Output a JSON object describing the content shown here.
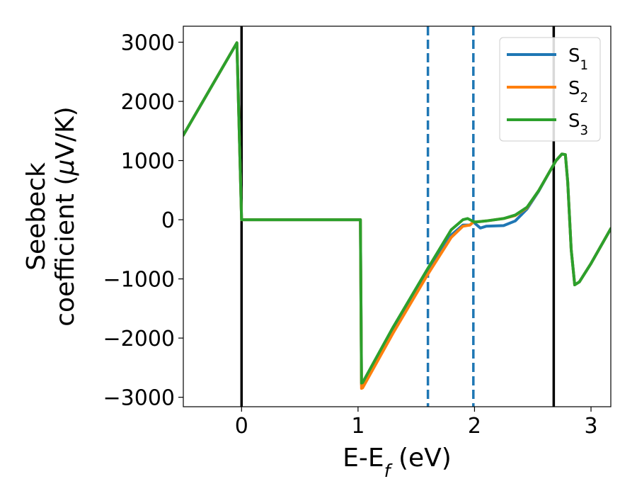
{
  "chart_data": {
    "type": "line",
    "xlabel": "E-E$_f$ (eV)",
    "ylabel_lines": [
      "Seebeck",
      "coefficient  ($\\mu$V/K)"
    ],
    "xlim": [
      -0.5,
      3.17
    ],
    "ylim": [
      -3160,
      3270
    ],
    "xticks": [
      0,
      1,
      2,
      3
    ],
    "yticks": [
      -3000,
      -2000,
      -1000,
      0,
      1000,
      2000,
      3000
    ],
    "xtick_labels": [
      "0",
      "1",
      "2",
      "3"
    ],
    "ytick_labels": [
      "−3000",
      "−2000",
      "−1000",
      "0",
      "1000",
      "2000",
      "3000"
    ],
    "grid": false,
    "legend_position": "top-right",
    "colors": {
      "S1": "#1f77b4",
      "S2": "#ff7f0e",
      "S3": "#2ca02c",
      "vline_solid": "#000000",
      "vline_dashed": "#1f77b4"
    },
    "vlines": [
      {
        "x": 0.0,
        "style": "solid",
        "color": "#000000"
      },
      {
        "x": 2.68,
        "style": "solid",
        "color": "#000000"
      },
      {
        "x": 1.6,
        "style": "dashed",
        "color": "#1f77b4"
      },
      {
        "x": 1.99,
        "style": "dashed",
        "color": "#1f77b4"
      }
    ],
    "series": [
      {
        "name": "S$_1$",
        "color": "#1f77b4",
        "x": [
          -0.5,
          -0.04,
          -0.02,
          0.0,
          0.5,
          1.02,
          1.03,
          1.04,
          1.3,
          1.6,
          1.8,
          1.9,
          1.96,
          1.99,
          2.05,
          2.1,
          2.25,
          2.35,
          2.45,
          2.55,
          2.65,
          2.7,
          2.75,
          2.78,
          2.8,
          2.83,
          2.86,
          2.9,
          3.0,
          3.17
        ],
        "y": [
          1430,
          2990,
          1500,
          0,
          0,
          0,
          -2790,
          -2780,
          -1870,
          -870,
          -260,
          -90,
          -90,
          -40,
          -140,
          -110,
          -100,
          -20,
          180,
          480,
          830,
          1000,
          1110,
          1100,
          640,
          -500,
          -1100,
          -1050,
          -740,
          -150
        ]
      },
      {
        "name": "S$_2$",
        "color": "#ff7f0e",
        "x": [
          -0.5,
          -0.04,
          -0.02,
          0.0,
          0.5,
          1.02,
          1.03,
          1.04,
          1.3,
          1.6,
          1.8,
          1.9,
          1.96,
          1.99,
          2.05,
          2.1,
          2.25,
          2.35,
          2.45,
          2.55,
          2.65,
          2.7,
          2.75,
          2.78,
          2.8,
          2.83,
          2.86,
          2.9,
          3.0,
          3.17
        ],
        "y": [
          1430,
          2990,
          1500,
          0,
          0,
          0,
          -2850,
          -2840,
          -1920,
          -920,
          -300,
          -110,
          -90,
          -40,
          -30,
          -20,
          20,
          70,
          200,
          490,
          830,
          1000,
          1110,
          1100,
          640,
          -500,
          -1100,
          -1050,
          -740,
          -150
        ]
      },
      {
        "name": "S$_3$",
        "color": "#2ca02c",
        "x": [
          -0.5,
          -0.04,
          -0.02,
          0.0,
          0.5,
          1.02,
          1.03,
          1.04,
          1.3,
          1.6,
          1.8,
          1.9,
          1.94,
          1.97,
          2.0,
          2.05,
          2.1,
          2.25,
          2.35,
          2.45,
          2.55,
          2.65,
          2.7,
          2.75,
          2.78,
          2.8,
          2.83,
          2.86,
          2.9,
          3.0,
          3.17
        ],
        "y": [
          1430,
          2990,
          1500,
          0,
          0,
          0,
          -2760,
          -2750,
          -1820,
          -820,
          -170,
          0,
          20,
          -10,
          -40,
          -30,
          -20,
          20,
          80,
          210,
          490,
          830,
          1000,
          1110,
          1100,
          640,
          -500,
          -1100,
          -1050,
          -740,
          -150
        ]
      }
    ]
  }
}
